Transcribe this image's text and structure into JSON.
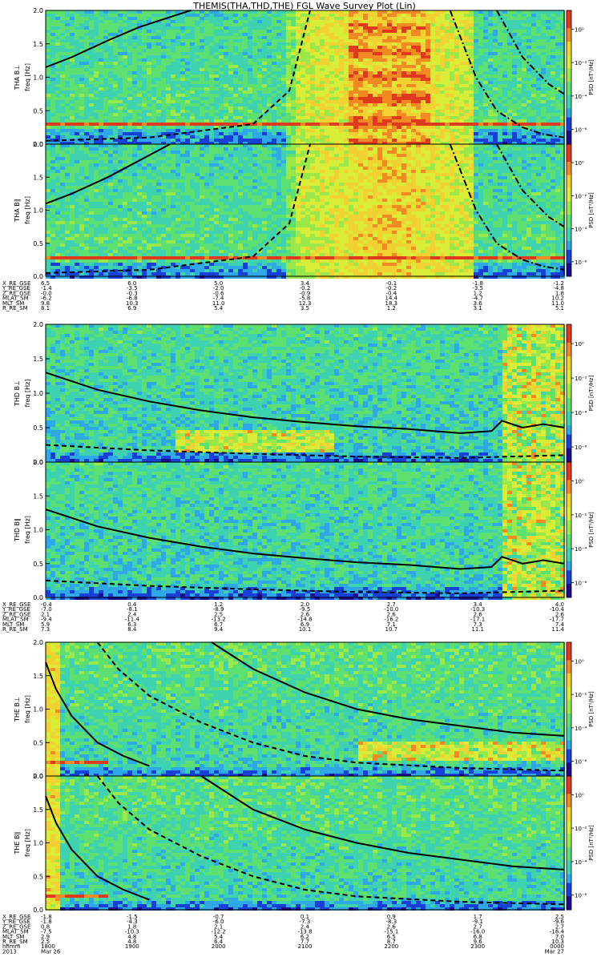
{
  "title": "THEMIS(THA,THD,THE) FGL Wave Survey Plot (Lin)",
  "colors": {
    "spectrogram_ramp": [
      "#1a0c8c",
      "#1740d8",
      "#2fa8e8",
      "#3fd2b0",
      "#5ee070",
      "#9ae84a",
      "#d8ec38",
      "#f2d232",
      "#f28a24",
      "#e03a1e",
      "#b8141c"
    ],
    "trace": "#000000"
  },
  "chart_data": [
    {
      "type": "heatmap",
      "probe": "THA",
      "ylabel": "THA B⊥",
      "yunit": "freq [Hz]",
      "colorbar_label": "PSD [nT²/Hz]",
      "colorbar_ticks": [
        "10⁰",
        "10⁻²",
        "10⁻⁴",
        "10⁻⁶"
      ],
      "ylim": [
        0,
        2
      ],
      "yticks": [
        "0.0",
        "0.5",
        "1.0",
        "1.5",
        "2.0"
      ],
      "xlim": [
        0,
        1
      ],
      "lines": [
        {
          "style": "solid",
          "x": [
            0,
            0.05,
            0.12,
            0.18,
            0.24,
            0.28
          ],
          "y": [
            1.15,
            1.3,
            1.55,
            1.75,
            1.9,
            2.0
          ]
        },
        {
          "style": "dashed",
          "x": [
            0,
            0.2,
            0.4,
            0.47,
            0.51
          ],
          "y": [
            0.05,
            0.1,
            0.3,
            0.8,
            2.0
          ]
        },
        {
          "style": "dashdot",
          "x": [
            0.78,
            0.83,
            0.87,
            0.92,
            0.96,
            1.0
          ],
          "y": [
            2.0,
            1.0,
            0.5,
            0.25,
            0.15,
            0.1
          ]
        },
        {
          "style": "dashdot",
          "x": [
            0.87,
            0.92,
            0.97,
            1.0
          ],
          "y": [
            2.0,
            1.3,
            0.9,
            0.75
          ]
        }
      ]
    },
    {
      "type": "heatmap",
      "probe": "THA",
      "ylabel": "THA B∥",
      "yunit": "freq [Hz]",
      "colorbar_label": "PSD [nT²/Hz]",
      "colorbar_ticks": [
        "10⁰",
        "10⁻²",
        "10⁻⁴",
        "10⁻⁶"
      ],
      "ylim": [
        0,
        2
      ],
      "yticks": [
        "0.0",
        "0.5",
        "1.0",
        "1.5",
        "2.0"
      ],
      "xlim": [
        0,
        1
      ],
      "lines": [
        {
          "style": "solid",
          "x": [
            0,
            0.05,
            0.12,
            0.18,
            0.24
          ],
          "y": [
            1.1,
            1.25,
            1.5,
            1.75,
            2.0
          ]
        },
        {
          "style": "dashed",
          "x": [
            0,
            0.2,
            0.4,
            0.47,
            0.51
          ],
          "y": [
            0.05,
            0.1,
            0.3,
            0.8,
            2.0
          ]
        },
        {
          "style": "dashdot",
          "x": [
            0.78,
            0.83,
            0.87,
            0.92,
            0.96,
            1.0
          ],
          "y": [
            2.0,
            1.0,
            0.5,
            0.25,
            0.15,
            0.1
          ]
        },
        {
          "style": "dashdot",
          "x": [
            0.87,
            0.92,
            0.97,
            1.0
          ],
          "y": [
            2.0,
            1.3,
            0.9,
            0.75
          ]
        }
      ]
    },
    {
      "type": "heatmap",
      "probe": "THD",
      "ylabel": "THD B⊥",
      "yunit": "freq [Hz]",
      "colorbar_label": "PSD [nT²/Hz]",
      "colorbar_ticks": [
        "10⁰",
        "10⁻²",
        "10⁻⁴",
        "10⁻⁶"
      ],
      "ylim": [
        0,
        2
      ],
      "yticks": [
        "0.0",
        "0.5",
        "1.0",
        "1.5",
        "2.0"
      ],
      "xlim": [
        0,
        1
      ],
      "lines": [
        {
          "style": "solid",
          "x": [
            0,
            0.1,
            0.2,
            0.3,
            0.4,
            0.5,
            0.6,
            0.7,
            0.8,
            0.86,
            0.88,
            0.92,
            0.96,
            1.0
          ],
          "y": [
            1.3,
            1.05,
            0.88,
            0.75,
            0.65,
            0.58,
            0.52,
            0.48,
            0.42,
            0.45,
            0.6,
            0.5,
            0.55,
            0.5
          ]
        },
        {
          "style": "dashed",
          "x": [
            0,
            0.2,
            0.4,
            0.6,
            0.8,
            1.0
          ],
          "y": [
            0.25,
            0.17,
            0.12,
            0.08,
            0.06,
            0.1
          ]
        }
      ]
    },
    {
      "type": "heatmap",
      "probe": "THD",
      "ylabel": "THD B∥",
      "yunit": "freq [Hz]",
      "colorbar_label": "PSD [nT²/Hz]",
      "colorbar_ticks": [
        "10⁰",
        "10⁻²",
        "10⁻⁴",
        "10⁻⁶"
      ],
      "ylim": [
        0,
        2
      ],
      "yticks": [
        "0.0",
        "0.5",
        "1.0",
        "1.5",
        "2.0"
      ],
      "xlim": [
        0,
        1
      ],
      "lines": [
        {
          "style": "solid",
          "x": [
            0,
            0.1,
            0.2,
            0.3,
            0.4,
            0.5,
            0.6,
            0.7,
            0.8,
            0.86,
            0.88,
            0.92,
            0.96,
            1.0
          ],
          "y": [
            1.3,
            1.05,
            0.88,
            0.75,
            0.65,
            0.58,
            0.52,
            0.48,
            0.42,
            0.45,
            0.6,
            0.5,
            0.55,
            0.5
          ]
        },
        {
          "style": "dashed",
          "x": [
            0,
            0.2,
            0.4,
            0.6,
            0.8,
            1.0
          ],
          "y": [
            0.25,
            0.17,
            0.12,
            0.08,
            0.06,
            0.1
          ]
        }
      ]
    },
    {
      "type": "heatmap",
      "probe": "THE",
      "ylabel": "THE B⊥",
      "yunit": "freq [Hz]",
      "colorbar_label": "PSD [nT²/Hz]",
      "colorbar_ticks": [
        "10⁰",
        "10⁻²",
        "10⁻⁴",
        "10⁻⁶"
      ],
      "ylim": [
        0,
        2
      ],
      "yticks": [
        "0.0",
        "0.5",
        "1.0",
        "1.5",
        "2.0"
      ],
      "xlim": [
        0,
        1
      ],
      "lines": [
        {
          "style": "solid",
          "x": [
            0.32,
            0.4,
            0.5,
            0.6,
            0.7,
            0.8,
            0.9,
            1.0
          ],
          "y": [
            2.0,
            1.6,
            1.25,
            1.0,
            0.85,
            0.75,
            0.65,
            0.6
          ]
        },
        {
          "style": "dashed",
          "x": [
            0.1,
            0.14,
            0.2,
            0.3,
            0.4,
            0.5,
            0.6,
            0.8,
            1.0
          ],
          "y": [
            2.0,
            1.6,
            1.2,
            0.8,
            0.5,
            0.3,
            0.2,
            0.12,
            0.08
          ]
        },
        {
          "style": "solid",
          "x": [
            0,
            0.02,
            0.05,
            0.1,
            0.15,
            0.2
          ],
          "y": [
            1.7,
            1.3,
            0.9,
            0.5,
            0.3,
            0.15
          ]
        }
      ]
    },
    {
      "type": "heatmap",
      "probe": "THE",
      "ylabel": "THE B∥",
      "yunit": "freq [Hz]",
      "colorbar_label": "PSD [nT²/Hz]",
      "colorbar_ticks": [
        "10⁰",
        "10⁻²",
        "10⁻⁴",
        "10⁻⁶"
      ],
      "ylim": [
        0,
        2
      ],
      "yticks": [
        "0.0",
        "0.5",
        "1.0",
        "1.5",
        "2.0"
      ],
      "xlim": [
        0,
        1
      ],
      "lines": [
        {
          "style": "solid",
          "x": [
            0.3,
            0.4,
            0.5,
            0.6,
            0.7,
            0.8,
            0.9,
            1.0
          ],
          "y": [
            2.0,
            1.5,
            1.2,
            1.0,
            0.85,
            0.75,
            0.65,
            0.6
          ]
        },
        {
          "style": "dashed",
          "x": [
            0.1,
            0.14,
            0.2,
            0.3,
            0.4,
            0.5,
            0.6,
            0.8,
            1.0
          ],
          "y": [
            2.0,
            1.6,
            1.2,
            0.8,
            0.5,
            0.3,
            0.2,
            0.12,
            0.08
          ]
        },
        {
          "style": "solid",
          "x": [
            0,
            0.02,
            0.05,
            0.1,
            0.15,
            0.2
          ],
          "y": [
            1.7,
            1.3,
            0.9,
            0.5,
            0.3,
            0.15
          ]
        }
      ]
    }
  ],
  "ephemeris": [
    {
      "labels": [
        "X_RE_GSE",
        "Y_RE_GSE",
        "Z_RE_GSE",
        "MLAT_SM",
        "MLT_SM",
        "R_RE_SM"
      ],
      "columns": [
        [
          "6.5",
          "-1.4",
          "-0.0",
          "-6.2",
          "9.8",
          "8.1"
        ],
        [
          "6.0",
          "-3.5",
          "-0.3",
          "-6.8",
          "10.3",
          "6.9"
        ],
        [
          "5.0",
          "-2.0",
          "-0.6",
          "-7.4",
          "11.0",
          "5.4"
        ],
        [
          "3.4",
          "-0.2",
          "-0.9",
          "-5.8",
          "12.3",
          "3.5"
        ],
        [
          "-0.1",
          "-0.2",
          "-0.4",
          "14.4",
          "18.3",
          "1.2"
        ],
        [
          "-1.8",
          "-3.5",
          "1.2",
          "-4.7",
          "3.6",
          "3.1"
        ],
        [
          "-1.2",
          "-4.8",
          "1.8",
          "10.2",
          "11.0",
          "5.1"
        ]
      ]
    },
    {
      "labels": [
        "X_RE_GSE",
        "Y_RE_GSE",
        "Z_RE_GSE",
        "MLAT_SM",
        "MLT_SM",
        "R_RE_SM"
      ],
      "columns": [
        [
          "-0.4",
          "-7.0",
          "2.1",
          "-9.4",
          "5.9",
          "7.3"
        ],
        [
          "0.4",
          "-8.1",
          "2.4",
          "-11.4",
          "6.3",
          "8.4"
        ],
        [
          "1.2",
          "-8.9",
          "2.5",
          "-13.2",
          "6.7",
          "9.4"
        ],
        [
          "2.0",
          "-9.5",
          "2.6",
          "-14.8",
          "6.9",
          "10.1"
        ],
        [
          "2.7",
          "-10.0",
          "2.6",
          "-16.2",
          "7.1",
          "10.7"
        ],
        [
          "3.4",
          "-10.3",
          "2.6",
          "-17.1",
          "7.3",
          "11.1"
        ],
        [
          "4.0",
          "-10.4",
          "2.6",
          "-17.7",
          "7.4",
          "11.4"
        ]
      ]
    },
    {
      "labels": [
        "X_RE_GSE",
        "Y_RE_GSE",
        "Z_RE_GSE",
        "MLAT_SM",
        "MLT_SM",
        "R_RE_SM",
        "hhmm",
        "2013"
      ],
      "columns": [
        [
          "-1.8",
          "-1.8",
          "0.8",
          "-7.5",
          "2.9",
          "2.5",
          "1800",
          "Mar 26"
        ],
        [
          "-1.5",
          "-4.3",
          "1.8",
          "-10.3",
          "4.8",
          "4.8",
          "1900",
          ""
        ],
        [
          "-0.7",
          "-6.0",
          "2.1",
          "-12.2",
          "5.4",
          "6.4",
          "2000",
          ""
        ],
        [
          "0.1",
          "-7.3",
          "2.4",
          "-13.8",
          "6.2",
          "7.7",
          "2100",
          ""
        ],
        [
          "0.9",
          "-8.3",
          "2.6",
          "-15.1",
          "6.5",
          "8.7",
          "2200",
          ""
        ],
        [
          "1.7",
          "-9.1",
          "2.7",
          "-16.0",
          "6.8",
          "9.6",
          "2300",
          ""
        ],
        [
          "2.5",
          "-9.6",
          "2.7",
          "-16.4",
          "7.0",
          "10.3",
          "0000",
          "Mar 27"
        ]
      ]
    }
  ]
}
